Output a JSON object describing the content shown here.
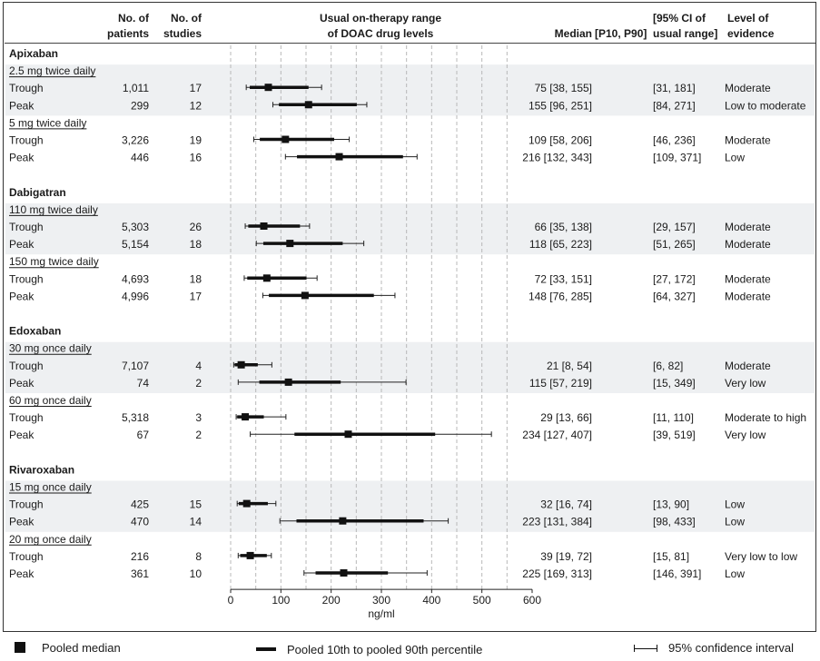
{
  "headers": {
    "patients": [
      "No. of",
      "patients"
    ],
    "studies": [
      "No. of",
      "studies"
    ],
    "range": [
      "Usual on-therapy range",
      "of DOAC drug levels"
    ],
    "median": "Median",
    "pct": "[P10, P90]",
    "ci": [
      "[95% CI of",
      "usual range]"
    ],
    "evidence": [
      "Level of",
      "evidence"
    ]
  },
  "legend": {
    "median": "Pooled median",
    "range": "Pooled 10th to pooled 90th percentile",
    "ci": "95% confidence interval"
  },
  "chart_data": {
    "type": "forest",
    "xlabel": "ng/ml",
    "xlim": [
      0,
      600
    ],
    "xticks": [
      0,
      100,
      200,
      300,
      400,
      500,
      600
    ],
    "gridlines": [
      0,
      50,
      100,
      150,
      200,
      250,
      300,
      350,
      400,
      450,
      500,
      550
    ],
    "drugs": [
      {
        "name": "Apixaban",
        "doses": [
          {
            "label": "2.5 mg twice daily",
            "rows": [
              {
                "type": "Trough",
                "patients": "1,011",
                "studies": "17",
                "median": 75,
                "p10": 38,
                "p90": 155,
                "ci_lo": 31,
                "ci_hi": 181,
                "evidence": "Moderate"
              },
              {
                "type": "Peak",
                "patients": "299",
                "studies": "12",
                "median": 155,
                "p10": 96,
                "p90": 251,
                "ci_lo": 84,
                "ci_hi": 271,
                "evidence": "Low to moderate"
              }
            ]
          },
          {
            "label": "5 mg twice daily",
            "rows": [
              {
                "type": "Trough",
                "patients": "3,226",
                "studies": "19",
                "median": 109,
                "p10": 58,
                "p90": 206,
                "ci_lo": 46,
                "ci_hi": 236,
                "evidence": "Moderate"
              },
              {
                "type": "Peak",
                "patients": "446",
                "studies": "16",
                "median": 216,
                "p10": 132,
                "p90": 343,
                "ci_lo": 109,
                "ci_hi": 371,
                "evidence": "Low"
              }
            ]
          }
        ]
      },
      {
        "name": "Dabigatran",
        "doses": [
          {
            "label": "110 mg twice daily",
            "rows": [
              {
                "type": "Trough",
                "patients": "5,303",
                "studies": "26",
                "median": 66,
                "p10": 35,
                "p90": 138,
                "ci_lo": 29,
                "ci_hi": 157,
                "evidence": "Moderate"
              },
              {
                "type": "Peak",
                "patients": "5,154",
                "studies": "18",
                "median": 118,
                "p10": 65,
                "p90": 223,
                "ci_lo": 51,
                "ci_hi": 265,
                "evidence": "Moderate"
              }
            ]
          },
          {
            "label": "150 mg twice daily",
            "rows": [
              {
                "type": "Trough",
                "patients": "4,693",
                "studies": "18",
                "median": 72,
                "p10": 33,
                "p90": 151,
                "ci_lo": 27,
                "ci_hi": 172,
                "evidence": "Moderate"
              },
              {
                "type": "Peak",
                "patients": "4,996",
                "studies": "17",
                "median": 148,
                "p10": 76,
                "p90": 285,
                "ci_lo": 64,
                "ci_hi": 327,
                "evidence": "Moderate"
              }
            ]
          }
        ]
      },
      {
        "name": "Edoxaban",
        "doses": [
          {
            "label": "30 mg once daily",
            "rows": [
              {
                "type": "Trough",
                "patients": "7,107",
                "studies": "4",
                "median": 21,
                "p10": 8,
                "p90": 54,
                "ci_lo": 6,
                "ci_hi": 82,
                "evidence": "Moderate"
              },
              {
                "type": "Peak",
                "patients": "74",
                "studies": "2",
                "median": 115,
                "p10": 57,
                "p90": 219,
                "ci_lo": 15,
                "ci_hi": 349,
                "evidence": "Very low"
              }
            ]
          },
          {
            "label": "60 mg once daily",
            "rows": [
              {
                "type": "Trough",
                "patients": "5,318",
                "studies": "3",
                "median": 29,
                "p10": 13,
                "p90": 66,
                "ci_lo": 11,
                "ci_hi": 110,
                "evidence": "Moderate to high"
              },
              {
                "type": "Peak",
                "patients": "67",
                "studies": "2",
                "median": 234,
                "p10": 127,
                "p90": 407,
                "ci_lo": 39,
                "ci_hi": 519,
                "evidence": "Very low"
              }
            ]
          }
        ]
      },
      {
        "name": "Rivaroxaban",
        "doses": [
          {
            "label": "15 mg once daily",
            "rows": [
              {
                "type": "Trough",
                "patients": "425",
                "studies": "15",
                "median": 32,
                "p10": 16,
                "p90": 74,
                "ci_lo": 13,
                "ci_hi": 90,
                "evidence": "Low"
              },
              {
                "type": "Peak",
                "patients": "470",
                "studies": "14",
                "median": 223,
                "p10": 131,
                "p90": 384,
                "ci_lo": 98,
                "ci_hi": 433,
                "evidence": "Low"
              }
            ]
          },
          {
            "label": "20 mg once daily",
            "rows": [
              {
                "type": "Trough",
                "patients": "216",
                "studies": "8",
                "median": 39,
                "p10": 19,
                "p90": 72,
                "ci_lo": 15,
                "ci_hi": 81,
                "evidence": "Very low to low"
              },
              {
                "type": "Peak",
                "patients": "361",
                "studies": "10",
                "median": 225,
                "p10": 169,
                "p90": 313,
                "ci_lo": 146,
                "ci_hi": 391,
                "evidence": "Low"
              }
            ]
          }
        ]
      }
    ]
  }
}
